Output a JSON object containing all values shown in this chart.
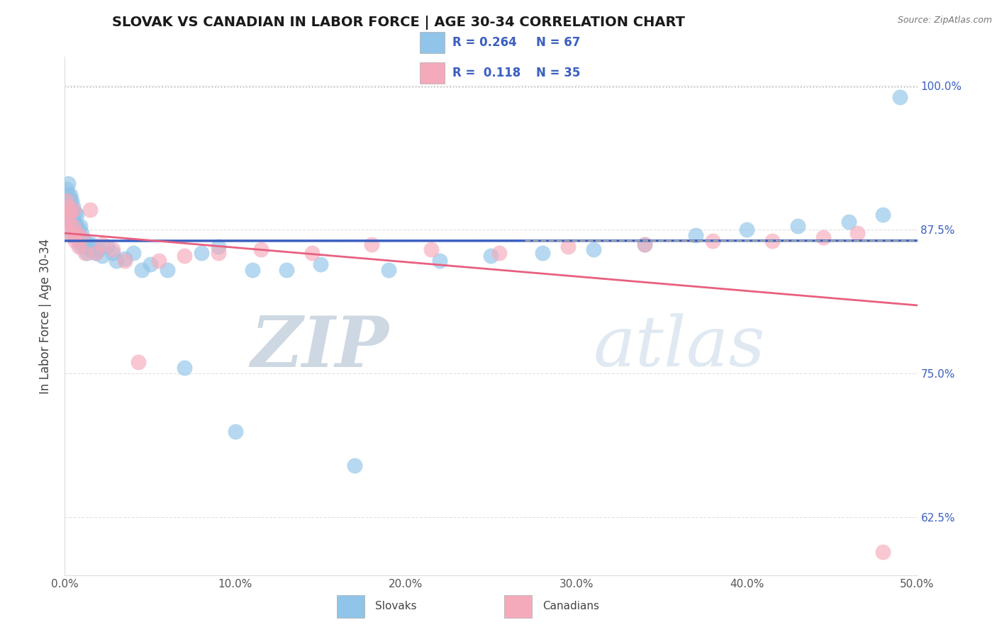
{
  "title": "SLOVAK VS CANADIAN IN LABOR FORCE | AGE 30-34 CORRELATION CHART",
  "source_text": "Source: ZipAtlas.com",
  "ylabel": "In Labor Force | Age 30-34",
  "xlim": [
    0.0,
    0.5
  ],
  "ylim": [
    0.575,
    1.025
  ],
  "xticks": [
    0.0,
    0.1,
    0.2,
    0.3,
    0.4,
    0.5
  ],
  "xticklabels": [
    "0.0%",
    "10.0%",
    "20.0%",
    "30.0%",
    "40.0%",
    "50.0%"
  ],
  "yticks": [
    0.625,
    0.75,
    0.875,
    1.0
  ],
  "yticklabels": [
    "62.5%",
    "75.0%",
    "87.5%",
    "100.0%"
  ],
  "r_slovak": 0.264,
  "n_slovak": 67,
  "r_canadian": 0.118,
  "n_canadian": 35,
  "color_slovak": "#90C4E8",
  "color_canadian": "#F5AABB",
  "color_line_slovak": "#3B5FC0",
  "color_line_canadian": "#E86080",
  "color_dashed_top": "#AAAAAA",
  "color_grid": "#CCCCCC",
  "watermark_color": "#D8E4F0",
  "legend_labels": [
    "Slovaks",
    "Canadians"
  ],
  "title_fontsize": 14,
  "tick_fontsize": 11,
  "ylabel_fontsize": 12,
  "slovak_x": [
    0.001,
    0.001,
    0.001,
    0.002,
    0.002,
    0.002,
    0.002,
    0.003,
    0.003,
    0.003,
    0.003,
    0.004,
    0.004,
    0.004,
    0.004,
    0.005,
    0.005,
    0.005,
    0.006,
    0.006,
    0.006,
    0.007,
    0.007,
    0.007,
    0.008,
    0.008,
    0.009,
    0.009,
    0.01,
    0.01,
    0.011,
    0.012,
    0.013,
    0.014,
    0.015,
    0.016,
    0.018,
    0.02,
    0.022,
    0.025,
    0.028,
    0.03,
    0.035,
    0.04,
    0.045,
    0.05,
    0.06,
    0.07,
    0.08,
    0.09,
    0.1,
    0.11,
    0.13,
    0.15,
    0.17,
    0.19,
    0.22,
    0.25,
    0.28,
    0.31,
    0.34,
    0.37,
    0.4,
    0.43,
    0.46,
    0.48,
    0.49
  ],
  "slovak_y": [
    0.895,
    0.9,
    0.91,
    0.89,
    0.9,
    0.905,
    0.915,
    0.885,
    0.895,
    0.9,
    0.905,
    0.87,
    0.88,
    0.89,
    0.9,
    0.875,
    0.885,
    0.895,
    0.87,
    0.88,
    0.89,
    0.87,
    0.878,
    0.888,
    0.865,
    0.875,
    0.868,
    0.878,
    0.86,
    0.872,
    0.865,
    0.86,
    0.855,
    0.863,
    0.858,
    0.862,
    0.855,
    0.858,
    0.852,
    0.86,
    0.855,
    0.848,
    0.85,
    0.855,
    0.84,
    0.845,
    0.84,
    0.755,
    0.855,
    0.86,
    0.7,
    0.84,
    0.84,
    0.845,
    0.67,
    0.84,
    0.848,
    0.852,
    0.855,
    0.858,
    0.862,
    0.87,
    0.875,
    0.878,
    0.882,
    0.888,
    0.99
  ],
  "canadian_x": [
    0.001,
    0.001,
    0.002,
    0.002,
    0.003,
    0.003,
    0.004,
    0.005,
    0.005,
    0.006,
    0.007,
    0.008,
    0.01,
    0.012,
    0.015,
    0.018,
    0.022,
    0.028,
    0.035,
    0.043,
    0.055,
    0.07,
    0.09,
    0.115,
    0.145,
    0.18,
    0.215,
    0.255,
    0.295,
    0.34,
    0.38,
    0.415,
    0.445,
    0.465,
    0.48
  ],
  "canadian_y": [
    0.9,
    0.888,
    0.882,
    0.895,
    0.875,
    0.89,
    0.87,
    0.878,
    0.892,
    0.865,
    0.872,
    0.86,
    0.868,
    0.855,
    0.892,
    0.855,
    0.862,
    0.858,
    0.848,
    0.76,
    0.848,
    0.852,
    0.855,
    0.858,
    0.855,
    0.862,
    0.858,
    0.855,
    0.86,
    0.862,
    0.865,
    0.865,
    0.868,
    0.872,
    0.595
  ]
}
